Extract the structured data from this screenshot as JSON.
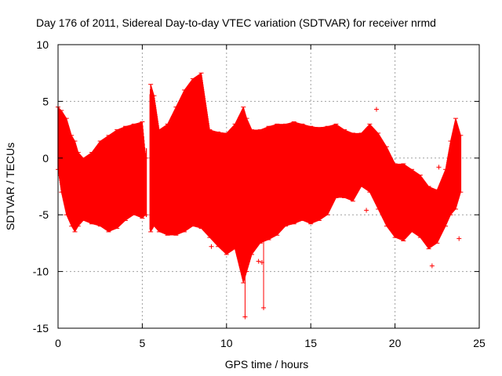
{
  "chart_data": {
    "type": "scatter",
    "title": "Day 176 of 2011, Sidereal Day-to-day VTEC variation (SDTVAR) for receiver nrmd",
    "xlabel": "GPS time / hours",
    "ylabel": "SDTVAR / TECUs",
    "xlim": [
      0,
      25
    ],
    "ylim": [
      -15,
      10
    ],
    "xticks": [
      0,
      5,
      10,
      15,
      20,
      25
    ],
    "yticks": [
      -15,
      -10,
      -5,
      0,
      5,
      10
    ],
    "grid": true,
    "series": [
      {
        "name": "SDTVAR",
        "color": "#ff0000",
        "style": "errorbar points (dense band)",
        "x": [
          0,
          0.2,
          0.5,
          0.8,
          1.0,
          1.2,
          1.5,
          2.0,
          2.5,
          3.0,
          3.5,
          4.0,
          4.5,
          5.0,
          5.2,
          5.5,
          5.7,
          6.0,
          6.5,
          7.0,
          7.5,
          8.0,
          8.5,
          9.0,
          9.5,
          10.0,
          10.5,
          11.0,
          11.2,
          11.5,
          12.0,
          12.5,
          13.0,
          13.5,
          14.0,
          14.5,
          15.0,
          15.5,
          16.0,
          16.5,
          17.0,
          17.5,
          18.0,
          18.5,
          19.0,
          19.5,
          20.0,
          20.5,
          21.0,
          21.5,
          22.0,
          22.5,
          23.0,
          23.3,
          23.6,
          23.9
        ],
        "upper": [
          4.5,
          4.2,
          3.5,
          2.0,
          1.5,
          0.5,
          0.0,
          0.5,
          1.5,
          2.0,
          2.5,
          2.8,
          3.0,
          3.2,
          0.0,
          6.5,
          5.5,
          2.5,
          3.0,
          4.5,
          6.0,
          7.0,
          7.5,
          2.5,
          2.3,
          2.2,
          3.0,
          4.5,
          3.5,
          2.5,
          2.5,
          2.8,
          3.0,
          3.0,
          3.2,
          3.0,
          2.8,
          2.7,
          2.8,
          3.0,
          2.5,
          2.2,
          2.2,
          3.0,
          2.2,
          1.0,
          -0.5,
          -0.5,
          -1.0,
          -1.5,
          -2.5,
          -2.8,
          -1.0,
          1.5,
          3.5,
          2.0
        ],
        "lower": [
          -1.0,
          -3.0,
          -5.0,
          -6.0,
          -6.5,
          -6.0,
          -5.5,
          -5.8,
          -6.0,
          -6.5,
          -6.2,
          -5.5,
          -5.0,
          -5.3,
          -5.0,
          -6.5,
          -6.0,
          -6.5,
          -6.8,
          -6.8,
          -6.5,
          -6.0,
          -6.2,
          -7.0,
          -7.8,
          -8.5,
          -8.0,
          -11.0,
          -10.0,
          -8.5,
          -7.5,
          -7.2,
          -6.8,
          -6.0,
          -5.8,
          -5.5,
          -5.8,
          -5.5,
          -5.0,
          -3.5,
          -3.5,
          -3.8,
          -2.5,
          -3.0,
          -4.5,
          -6.0,
          -7.0,
          -7.3,
          -6.5,
          -7.0,
          -8.0,
          -7.5,
          -6.0,
          -5.0,
          -4.5,
          -3.0
        ]
      }
    ],
    "outliers": [
      {
        "x": 11.1,
        "y": -14
      },
      {
        "x": 12.2,
        "y": -13.2
      },
      {
        "x": 9.1,
        "y": -7.8
      },
      {
        "x": 11.9,
        "y": -9.1
      },
      {
        "x": 12.1,
        "y": -9.2
      },
      {
        "x": 18.3,
        "y": -4.6
      },
      {
        "x": 18.9,
        "y": 4.3
      },
      {
        "x": 22.6,
        "y": -0.8
      },
      {
        "x": 23.8,
        "y": -7.1
      },
      {
        "x": 22.2,
        "y": -9.5
      }
    ]
  }
}
